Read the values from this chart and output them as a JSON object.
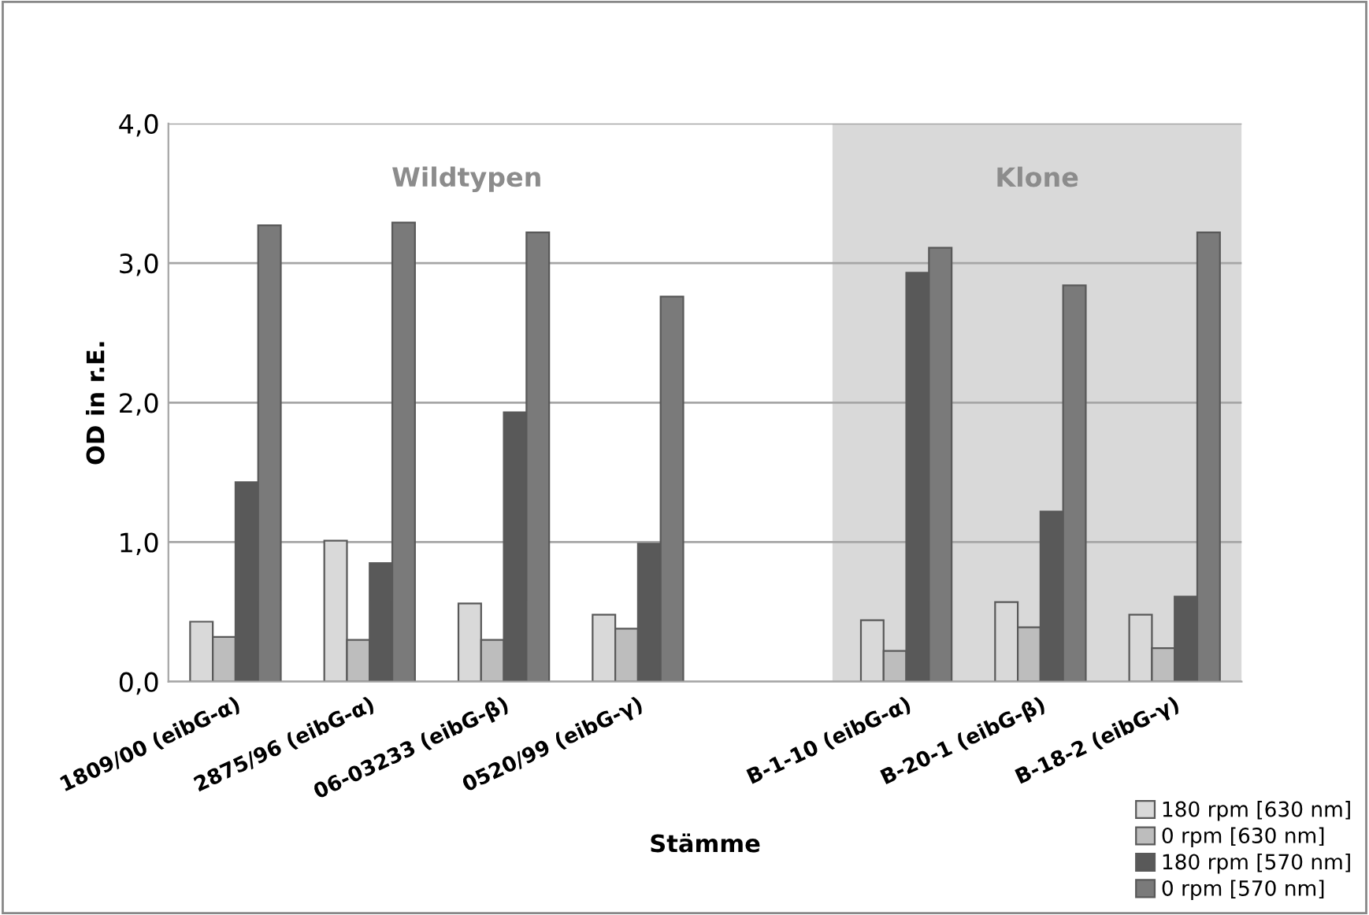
{
  "chart_data": {
    "type": "bar",
    "categories": [
      "1809/00 (eibG-α)",
      "2875/96 (eibG-α)",
      "06-03233 (eibG-β)",
      "0520/99 (eibG-γ)",
      null,
      "B-1-10 (eibG-α)",
      "B-20-1 (eibG-β)",
      "B-18-2 (eibG-γ)"
    ],
    "series": [
      {
        "name": "180 rpm [630 nm]",
        "color": "#d9d9d9",
        "values": [
          0.43,
          1.01,
          0.56,
          0.48,
          null,
          0.44,
          0.57,
          0.48
        ]
      },
      {
        "name": "0 rpm [630 nm]",
        "color": "#bdbdbd",
        "values": [
          0.32,
          0.3,
          0.3,
          0.38,
          null,
          0.22,
          0.39,
          0.24
        ]
      },
      {
        "name": "180 rpm [570 nm]",
        "color": "#595959",
        "values": [
          1.43,
          0.85,
          1.93,
          0.99,
          null,
          2.93,
          1.22,
          0.61
        ]
      },
      {
        "name": "0 rpm [570 nm]",
        "color": "#7a7a7a",
        "values": [
          3.27,
          3.29,
          3.22,
          2.76,
          null,
          3.11,
          2.84,
          3.22
        ]
      }
    ],
    "xlabel": "Stämme",
    "ylabel": "OD in r.E.",
    "ylim": [
      0,
      4
    ],
    "yticks": [
      {
        "value": 0,
        "label": "0,0"
      },
      {
        "value": 1,
        "label": "1,0"
      },
      {
        "value": 2,
        "label": "2,0"
      },
      {
        "value": 3,
        "label": "3,0"
      },
      {
        "value": 4,
        "label": "4,0"
      }
    ],
    "annotations": [
      "Wildtypen",
      "Klone"
    ],
    "grid": "y",
    "legend": "bottom right"
  }
}
